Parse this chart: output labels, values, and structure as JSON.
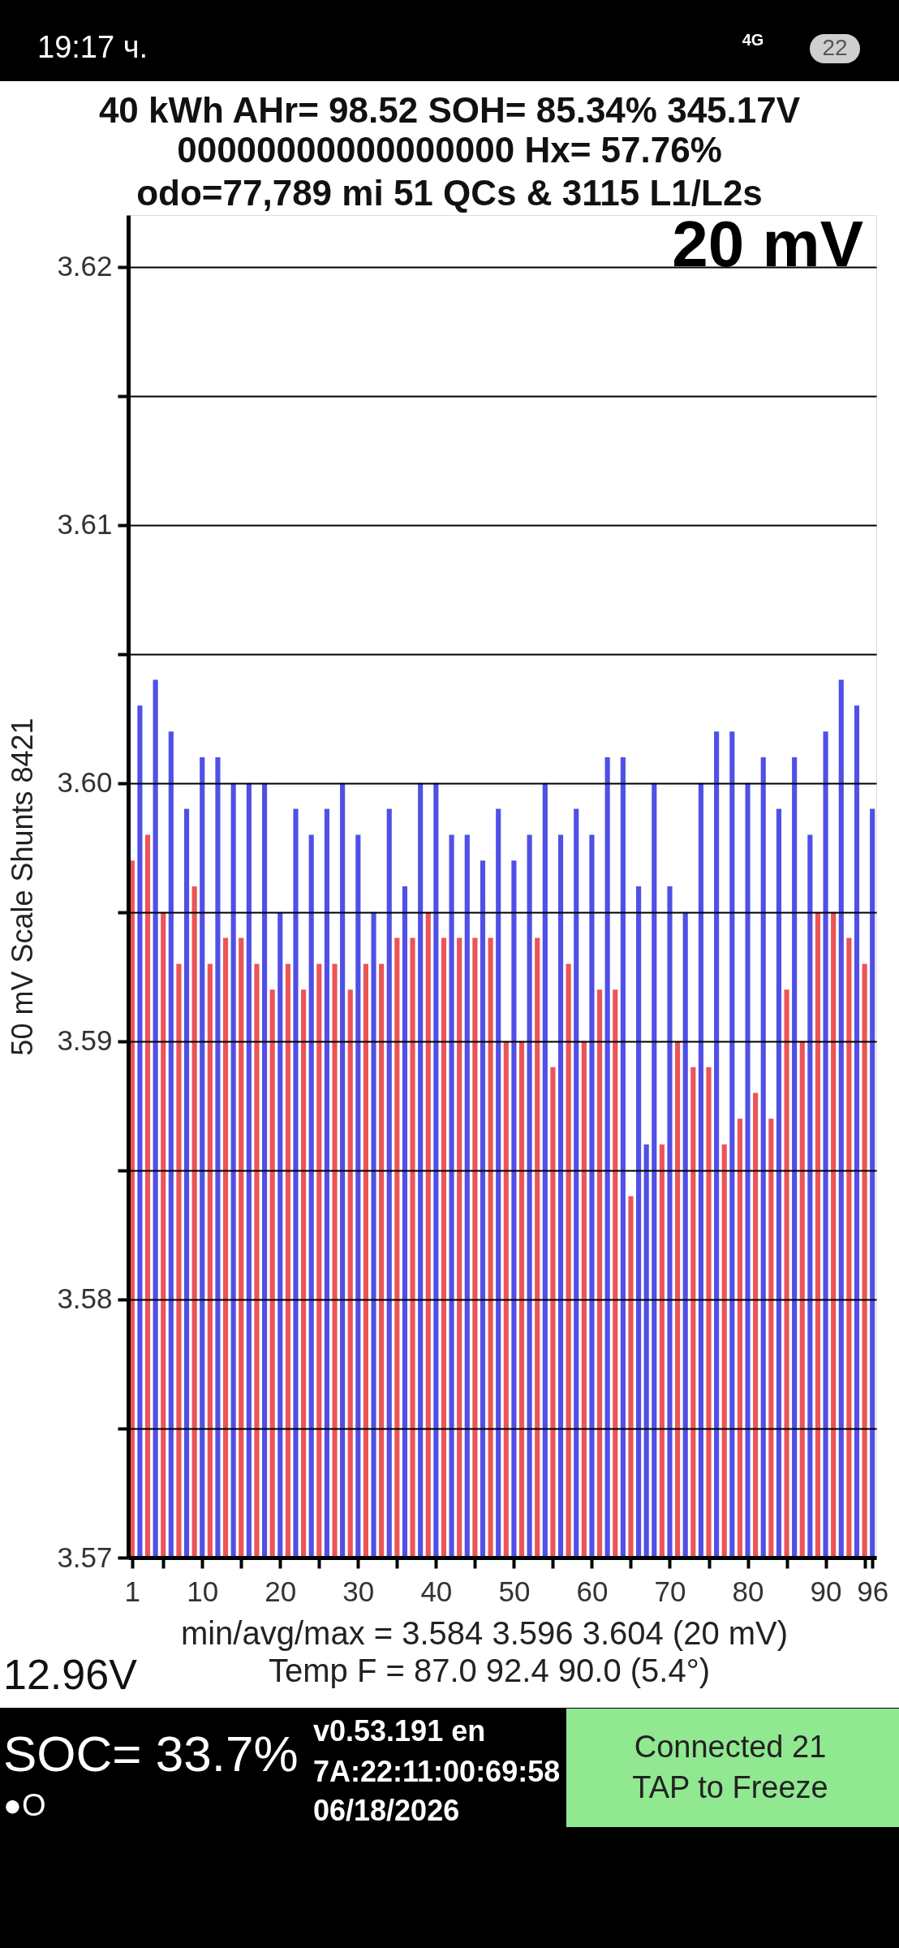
{
  "chart_data": {
    "type": "bar",
    "title": "40 kWh  AHr= 98.52 SOH= 85.34% 345.17V",
    "subtitle": "00000000000000000  Hx= 57.76%\nodo=77,789 mi 51 QCs & 3115 L1/L2s",
    "ylabel": "50 mV Scale Shunts 8421",
    "x": [
      1,
      2,
      3,
      4,
      5,
      6,
      7,
      8,
      9,
      10,
      11,
      12,
      13,
      14,
      15,
      16,
      17,
      18,
      19,
      20,
      21,
      22,
      23,
      24,
      25,
      26,
      27,
      28,
      29,
      30,
      31,
      32,
      33,
      34,
      35,
      36,
      37,
      38,
      39,
      40,
      41,
      42,
      43,
      44,
      45,
      46,
      47,
      48,
      49,
      50,
      51,
      52,
      53,
      54,
      55,
      56,
      57,
      58,
      59,
      60,
      61,
      62,
      63,
      64,
      65,
      66,
      67,
      68,
      69,
      70,
      71,
      72,
      73,
      74,
      75,
      76,
      77,
      78,
      79,
      80,
      81,
      82,
      83,
      84,
      85,
      86,
      87,
      88,
      89,
      90,
      91,
      92,
      93,
      94,
      95,
      96
    ],
    "values": [
      3.597,
      3.603,
      3.598,
      3.604,
      3.595,
      3.602,
      3.593,
      3.599,
      3.596,
      3.601,
      3.593,
      3.601,
      3.594,
      3.6,
      3.594,
      3.6,
      3.593,
      3.6,
      3.592,
      3.595,
      3.593,
      3.599,
      3.592,
      3.598,
      3.593,
      3.599,
      3.593,
      3.6,
      3.592,
      3.598,
      3.593,
      3.595,
      3.593,
      3.599,
      3.594,
      3.596,
      3.594,
      3.6,
      3.595,
      3.6,
      3.594,
      3.598,
      3.594,
      3.598,
      3.594,
      3.597,
      3.594,
      3.599,
      3.59,
      3.597,
      3.59,
      3.598,
      3.594,
      3.6,
      3.589,
      3.598,
      3.593,
      3.599,
      3.59,
      3.598,
      3.592,
      3.601,
      3.592,
      3.601,
      3.584,
      3.596,
      3.586,
      3.6,
      3.586,
      3.596,
      3.59,
      3.595,
      3.589,
      3.6,
      3.589,
      3.602,
      3.586,
      3.602,
      3.587,
      3.6,
      3.588,
      3.601,
      3.587,
      3.599,
      3.592,
      3.601,
      3.59,
      3.598,
      3.595,
      3.602,
      3.595,
      3.604,
      3.594,
      3.603,
      3.593,
      3.599
    ],
    "colors": [
      "#eb5555",
      "#5050e6",
      "#eb5555",
      "#5050e6",
      "#eb5555",
      "#5050e6",
      "#eb5555",
      "#5050e6",
      "#eb5555",
      "#5050e6",
      "#eb5555",
      "#5050e6",
      "#eb5555",
      "#5050e6",
      "#eb5555",
      "#5050e6",
      "#eb5555",
      "#5050e6",
      "#eb5555",
      "#5050e6",
      "#eb5555",
      "#5050e6",
      "#eb5555",
      "#5050e6",
      "#eb5555",
      "#5050e6",
      "#eb5555",
      "#5050e6",
      "#eb5555",
      "#5050e6",
      "#eb5555",
      "#5050e6",
      "#eb5555",
      "#5050e6",
      "#eb5555",
      "#5050e6",
      "#eb5555",
      "#5050e6",
      "#eb5555",
      "#5050e6",
      "#eb5555",
      "#5050e6",
      "#eb5555",
      "#5050e6",
      "#eb5555",
      "#5050e6",
      "#eb5555",
      "#5050e6",
      "#eb5555",
      "#5050e6",
      "#eb5555",
      "#5050e6",
      "#eb5555",
      "#5050e6",
      "#eb5555",
      "#5050e6",
      "#eb5555",
      "#5050e6",
      "#eb5555",
      "#5050e6",
      "#eb5555",
      "#5050e6",
      "#eb5555",
      "#5050e6",
      "#eb5555",
      "#5050e6",
      "#5050e6",
      "#5050e6",
      "#eb5555",
      "#5050e6",
      "#eb5555",
      "#5050e6",
      "#eb5555",
      "#5050e6",
      "#eb5555",
      "#5050e6",
      "#eb5555",
      "#5050e6",
      "#eb5555",
      "#5050e6",
      "#eb5555",
      "#5050e6",
      "#eb5555",
      "#5050e6",
      "#eb5555",
      "#5050e6",
      "#eb5555",
      "#5050e6",
      "#eb5555",
      "#5050e6",
      "#eb5555",
      "#5050e6",
      "#eb5555",
      "#5050e6",
      "#eb5555",
      "#5050e6"
    ],
    "xlim": [
      0.5,
      96.5
    ],
    "xticks": [
      1,
      {
        "value": 5,
        "label": null
      },
      10,
      {
        "value": 15,
        "label": null
      },
      20,
      {
        "value": 25,
        "label": null
      },
      30,
      {
        "value": 35,
        "label": null
      },
      40,
      {
        "value": 45,
        "label": null
      },
      50,
      {
        "value": 55,
        "label": null
      },
      60,
      {
        "value": 65,
        "label": null
      },
      70,
      {
        "value": 75,
        "label": null
      },
      80,
      {
        "value": 85,
        "label": null
      },
      90,
      {
        "value": 95,
        "label": null
      },
      96
    ],
    "ylim": [
      3.57,
      3.622
    ],
    "yticks": [
      3.57,
      {
        "value": 3.575,
        "label": null
      },
      3.58,
      {
        "value": 3.585,
        "label": null
      },
      3.59,
      {
        "value": 3.595,
        "label": null
      },
      {
        "value": 3.6,
        "label": "3.60"
      },
      {
        "value": 3.605,
        "label": null
      },
      3.61,
      {
        "value": 3.615,
        "label": null
      },
      3.62
    ],
    "grid": "y",
    "annotations": [
      "20 mV",
      "min/avg/max = 3.584 3.596 3.604  (20 mV)",
      "Temp F = 87.0  92.4  90.0  (5.4°)",
      "12.96V",
      "SOC= 33.7%",
      "●O",
      "v0.53.191 en",
      "7A:22:11:00:69:58",
      "06/18/2026",
      "Connected 21",
      "TAP to Freeze",
      "19:17 ч.",
      "4G",
      "22"
    ]
  }
}
